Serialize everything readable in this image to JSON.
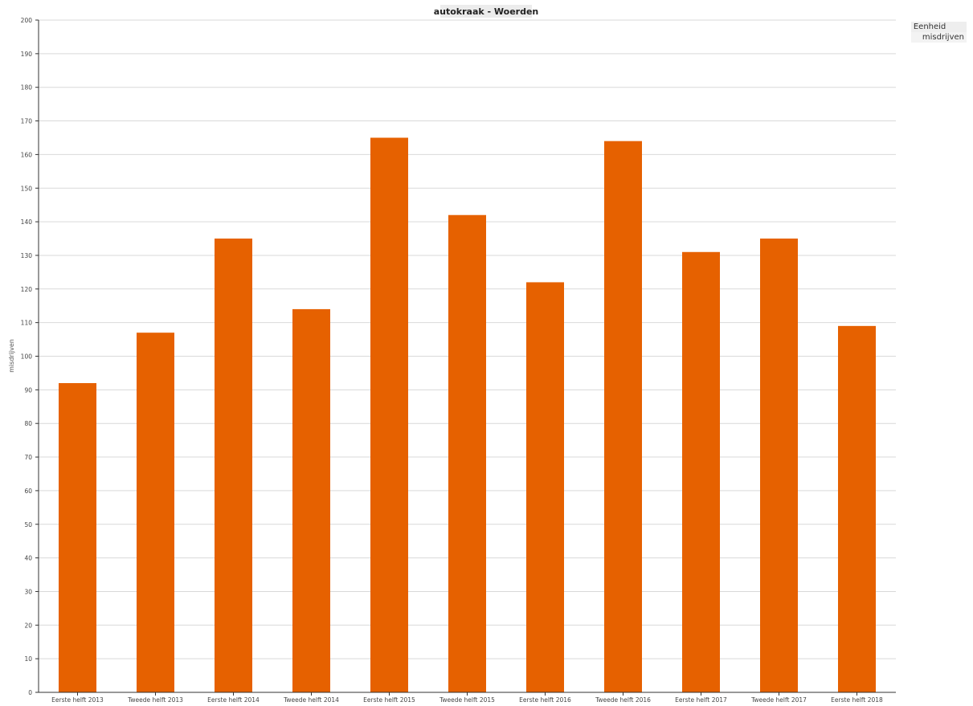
{
  "chart_data": {
    "type": "bar",
    "title": "autokraak - Woerden",
    "ylabel": "misdrijven",
    "xlabel": "",
    "ylim": [
      0,
      200
    ],
    "yticks": [
      0,
      10,
      20,
      30,
      40,
      50,
      60,
      70,
      80,
      90,
      100,
      110,
      120,
      130,
      140,
      150,
      160,
      170,
      180,
      190,
      200
    ],
    "grid": true,
    "legend_position": "top-right",
    "legend_title": "Eenheid",
    "categories": [
      "Eerste helft 2013",
      "Tweede helft 2013",
      "Eerste helft 2014",
      "Tweede helft 2014",
      "Eerste helft 2015",
      "Tweede helft 2015",
      "Eerste helft 2016",
      "Tweede helft 2016",
      "Eerste helft 2017",
      "Tweede helft 2017",
      "Eerste helft 2018"
    ],
    "series": [
      {
        "name": "misdrijven",
        "color": "#e66100",
        "values": [
          92,
          107,
          135,
          114,
          165,
          142,
          122,
          164,
          131,
          135,
          109
        ]
      }
    ]
  }
}
